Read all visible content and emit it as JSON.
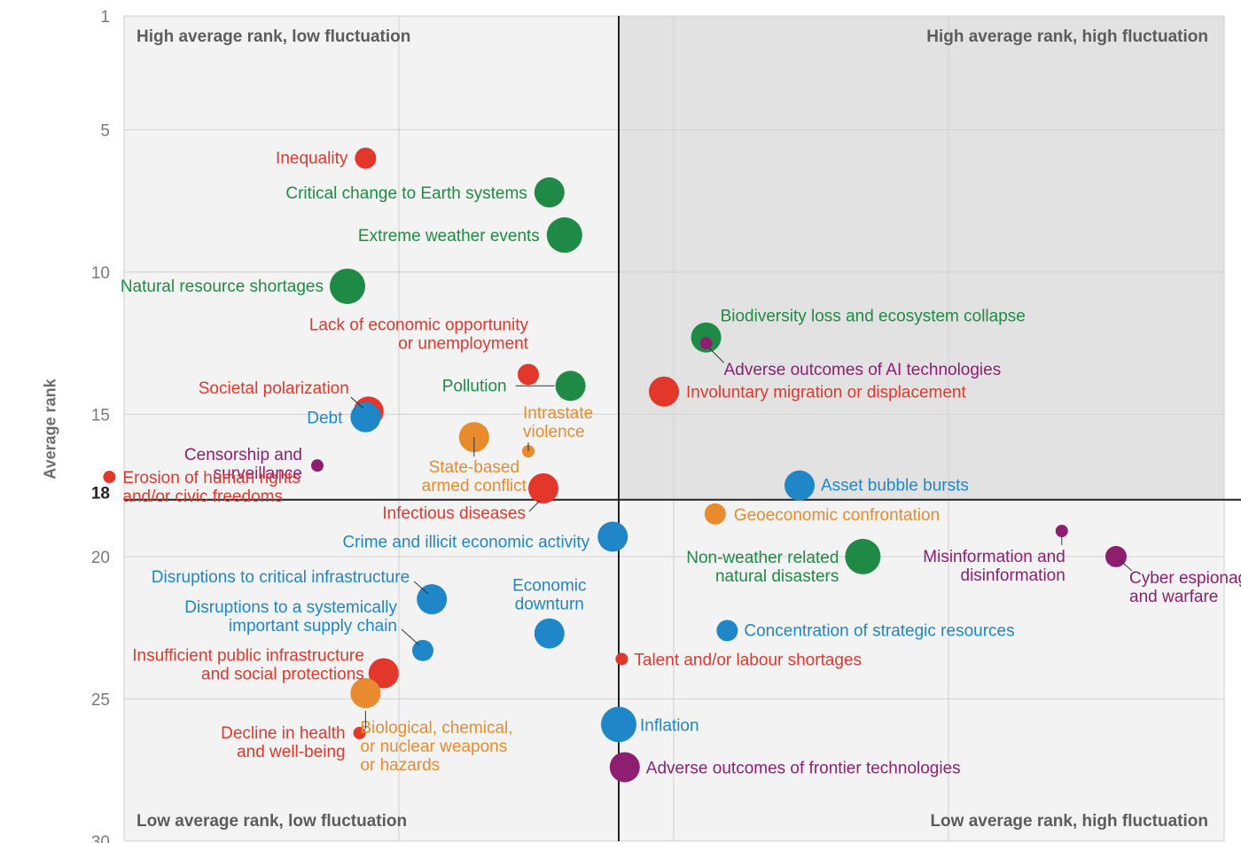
{
  "chart_data": {
    "type": "scatter",
    "ylabel": "Average rank",
    "ylim": [
      1,
      30
    ],
    "yticks": [
      1,
      5,
      10,
      15,
      20,
      25,
      30
    ],
    "y_threshold": 18,
    "grid": true,
    "colors": {
      "Economic": "#1f86c8",
      "Environmental": "#1e8a45",
      "Geopolitical": "#e88b2e",
      "Societal": "#e3372b",
      "Technological": "#8e1f70"
    },
    "quadrants": {
      "top_left": "High average rank, low fluctuation",
      "top_right": "High average rank, high fluctuation",
      "bottom_left": "Low average rank, low fluctuation",
      "bottom_right": "Low average rank, high fluctuation"
    },
    "points": [
      {
        "label": "Inequality",
        "category": "Societal",
        "x": -0.84,
        "y": 6.0,
        "size": 1
      },
      {
        "label": "Critical change to Earth systems",
        "category": "Environmental",
        "x": -0.23,
        "y": 7.2,
        "size": 2
      },
      {
        "label": "Extreme weather events",
        "category": "Environmental",
        "x": -0.18,
        "y": 8.7,
        "size": 3
      },
      {
        "label": "Natural resource shortages",
        "category": "Environmental",
        "x": -0.9,
        "y": 10.5,
        "size": 3
      },
      {
        "label": "Biodiversity loss and ecosystem collapse",
        "category": "Environmental",
        "x": 0.29,
        "y": 12.3,
        "size": 2
      },
      {
        "label": "Adverse outcomes of AI technologies",
        "category": "Technological",
        "x": 0.29,
        "y": 12.5,
        "size": 0
      },
      {
        "label": "Lack of economic opportunity or unemployment",
        "category": "Societal",
        "x": -0.3,
        "y": 13.6,
        "size": 1
      },
      {
        "label": "Pollution",
        "category": "Environmental",
        "x": -0.16,
        "y": 14.0,
        "size": 2
      },
      {
        "label": "Involuntary migration or displacement",
        "category": "Societal",
        "x": 0.15,
        "y": 14.2,
        "size": 2
      },
      {
        "label": "Societal polarization",
        "category": "Societal",
        "x": -0.83,
        "y": 14.9,
        "size": 2
      },
      {
        "label": "Debt",
        "category": "Economic",
        "x": -0.84,
        "y": 15.1,
        "size": 2
      },
      {
        "label": "State-based armed conflict",
        "category": "Geopolitical",
        "x": -0.48,
        "y": 15.8,
        "size": 2
      },
      {
        "label": "Intrastate violence",
        "category": "Geopolitical",
        "x": -0.3,
        "y": 16.3,
        "size": 0
      },
      {
        "label": "Censorship and surveillance",
        "category": "Technological",
        "x": -1.0,
        "y": 16.8,
        "size": 0
      },
      {
        "label": "Erosion of human rights and/or civic freedoms",
        "category": "Societal",
        "x": -1.69,
        "y": 17.2,
        "size": 0
      },
      {
        "label": "Infectious diseases",
        "category": "Societal",
        "x": -0.25,
        "y": 17.6,
        "size": 2
      },
      {
        "label": "Asset bubble bursts",
        "category": "Economic",
        "x": 0.6,
        "y": 17.5,
        "size": 2
      },
      {
        "label": "Geoeconomic confrontation",
        "category": "Geopolitical",
        "x": 0.32,
        "y": 18.5,
        "size": 1
      },
      {
        "label": "Crime and illicit economic activity",
        "category": "Economic",
        "x": -0.02,
        "y": 19.3,
        "size": 2
      },
      {
        "label": "Non-weather related natural disasters",
        "category": "Environmental",
        "x": 0.81,
        "y": 20.0,
        "size": 3
      },
      {
        "label": "Misinformation and disinformation",
        "category": "Technological",
        "x": 1.47,
        "y": 19.1,
        "size": 0
      },
      {
        "label": "Cyber espionage and warfare",
        "category": "Technological",
        "x": 1.65,
        "y": 20.0,
        "size": 1
      },
      {
        "label": "Disruptions to critical infrastructure",
        "category": "Economic",
        "x": -0.62,
        "y": 21.5,
        "size": 2
      },
      {
        "label": "Economic downturn",
        "category": "Economic",
        "x": -0.23,
        "y": 22.7,
        "size": 2
      },
      {
        "label": "Disruptions to a systemically important supply chain",
        "category": "Economic",
        "x": -0.65,
        "y": 23.3,
        "size": 1
      },
      {
        "label": "Concentration of strategic resources",
        "category": "Economic",
        "x": 0.36,
        "y": 22.6,
        "size": 1
      },
      {
        "label": "Talent and/or labour shortages",
        "category": "Societal",
        "x": 0.01,
        "y": 23.6,
        "size": 0
      },
      {
        "label": "Insufficient public infrastructure and social protections",
        "category": "Societal",
        "x": -0.78,
        "y": 24.1,
        "size": 2
      },
      {
        "label": "Biological, chemical, or nuclear weapons or hazards",
        "category": "Geopolitical",
        "x": -0.84,
        "y": 24.8,
        "size": 2
      },
      {
        "label": "Decline in health and well-being",
        "category": "Societal",
        "x": -0.86,
        "y": 26.2,
        "size": 0
      },
      {
        "label": "Inflation",
        "category": "Economic",
        "x": 0.0,
        "y": 25.9,
        "size": 3
      },
      {
        "label": "Adverse outcomes of frontier technologies",
        "category": "Technological",
        "x": 0.02,
        "y": 27.4,
        "size": 2
      }
    ],
    "label_lines": {
      "Inequality": [
        "Inequality"
      ],
      "Critical change to Earth systems": [
        "Critical change to Earth systems"
      ],
      "Extreme weather events": [
        "Extreme weather events"
      ],
      "Natural resource shortages": [
        "Natural resource shortages"
      ],
      "Biodiversity loss and ecosystem collapse": [
        "Biodiversity loss and ecosystem collapse"
      ],
      "Adverse outcomes of AI technologies": [
        "Adverse outcomes of AI technologies"
      ],
      "Lack of economic opportunity or unemployment": [
        "Lack of economic opportunity",
        "or unemployment"
      ],
      "Pollution": [
        "Pollution"
      ],
      "Involuntary migration or displacement": [
        "Involuntary migration or displacement"
      ],
      "Societal polarization": [
        "Societal polarization"
      ],
      "Debt": [
        "Debt"
      ],
      "State-based armed conflict": [
        "State-based",
        "armed conflict"
      ],
      "Intrastate violence": [
        "Intrastate",
        "violence"
      ],
      "Censorship and surveillance": [
        "Censorship and",
        "surveillance"
      ],
      "Erosion of human rights and/or civic freedoms": [
        "Erosion of human rights",
        "and/or civic freedoms"
      ],
      "Infectious diseases": [
        "Infectious diseases"
      ],
      "Asset bubble bursts": [
        "Asset bubble bursts"
      ],
      "Geoeconomic confrontation": [
        "Geoeconomic confrontation"
      ],
      "Crime and illicit economic activity": [
        "Crime and illicit economic activity"
      ],
      "Non-weather related natural disasters": [
        "Non-weather related",
        "natural disasters"
      ],
      "Misinformation and disinformation": [
        "Misinformation and",
        "disinformation"
      ],
      "Cyber espionage and warfare": [
        "Cyber espionage",
        "and warfare"
      ],
      "Disruptions to critical infrastructure": [
        "Disruptions to critical infrastructure"
      ],
      "Economic downturn": [
        "Economic",
        "downturn"
      ],
      "Disruptions to a systemically important supply chain": [
        "Disruptions to a systemically",
        "important supply chain"
      ],
      "Concentration of strategic resources": [
        "Concentration of strategic resources"
      ],
      "Talent and/or labour shortages": [
        "Talent and/or labour shortages"
      ],
      "Insufficient public infrastructure and social protections": [
        "Insufficient public infrastructure",
        "and social protections"
      ],
      "Biological, chemical, or nuclear weapons or hazards": [
        "Biological, chemical,",
        "or nuclear weapons",
        "or hazards"
      ],
      "Decline in health and well-being": [
        "Decline in health",
        "and well-being"
      ],
      "Inflation": [
        "Inflation"
      ],
      "Adverse outcomes of frontier technologies": [
        "Adverse outcomes of frontier technologies"
      ]
    }
  }
}
